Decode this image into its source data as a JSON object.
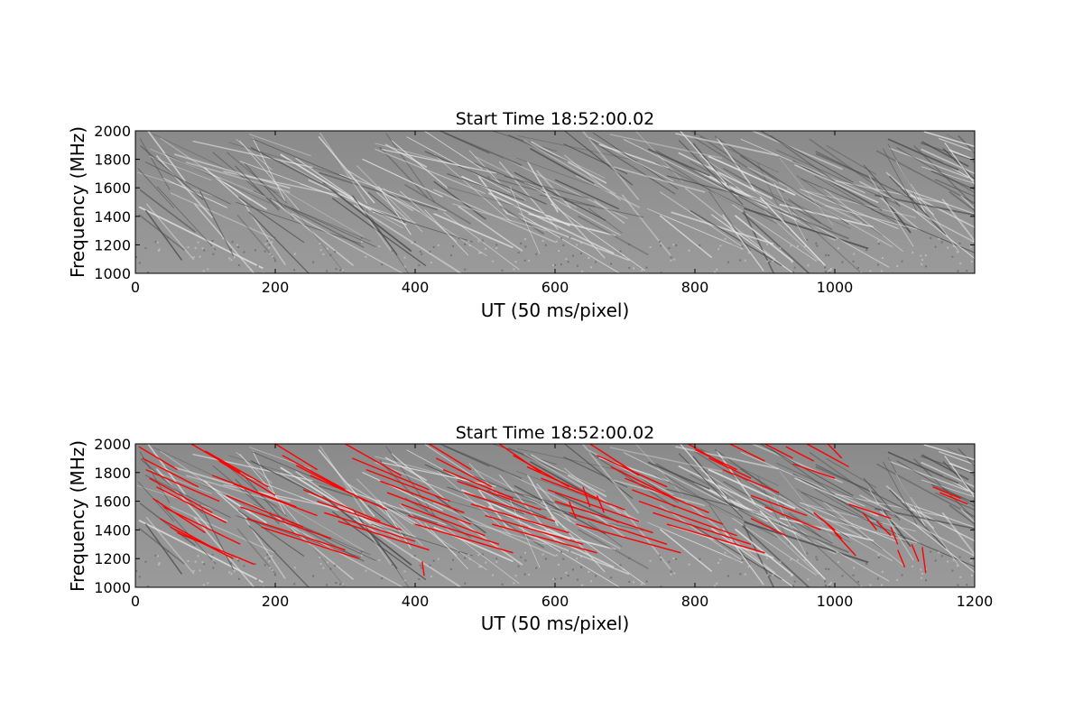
{
  "chart_data": [
    {
      "type": "heatmap",
      "title": "Start Time 18:52:00.02",
      "xlabel": "UT (50 ms/pixel)",
      "ylabel": "Frequency (MHz)",
      "xlim": [
        0,
        1200
      ],
      "ylim": [
        1000,
        2000
      ],
      "xticks": [
        0,
        200,
        400,
        600,
        800,
        1000
      ],
      "yticks": [
        1000,
        1200,
        1400,
        1600,
        1800,
        2000
      ],
      "colormap": "gray",
      "overlay": null
    },
    {
      "type": "heatmap",
      "title": "Start Time 18:52:00.02",
      "xlabel": "UT (50 ms/pixel)",
      "ylabel": "Frequency (MHz)",
      "xlim": [
        0,
        1200
      ],
      "ylim": [
        1000,
        2000
      ],
      "xticks": [
        0,
        200,
        400,
        600,
        800,
        1000,
        1200
      ],
      "yticks": [
        1000,
        1200,
        1400,
        1600,
        1800,
        2000
      ],
      "colormap": "gray",
      "overlay": {
        "color": "#ff0000",
        "description": "detected drifting burst segments",
        "segments": [
          [
            5,
            1980,
            60,
            1820
          ],
          [
            10,
            1900,
            90,
            1700
          ],
          [
            15,
            1820,
            120,
            1600
          ],
          [
            20,
            1760,
            110,
            1520
          ],
          [
            30,
            1700,
            130,
            1450
          ],
          [
            25,
            1620,
            100,
            1380
          ],
          [
            40,
            1560,
            150,
            1300
          ],
          [
            35,
            1480,
            120,
            1250
          ],
          [
            50,
            1420,
            140,
            1200
          ],
          [
            60,
            1380,
            170,
            1160
          ],
          [
            80,
            2000,
            150,
            1800
          ],
          [
            100,
            1950,
            190,
            1700
          ],
          [
            120,
            1880,
            200,
            1640
          ],
          [
            110,
            1780,
            230,
            1560
          ],
          [
            140,
            1720,
            260,
            1500
          ],
          [
            130,
            1640,
            240,
            1420
          ],
          [
            150,
            1560,
            280,
            1340
          ],
          [
            160,
            1480,
            300,
            1260
          ],
          [
            180,
            1420,
            320,
            1200
          ],
          [
            200,
            2000,
            260,
            1820
          ],
          [
            210,
            1920,
            300,
            1680
          ],
          [
            230,
            1850,
            330,
            1600
          ],
          [
            250,
            1780,
            360,
            1540
          ],
          [
            240,
            1680,
            350,
            1460
          ],
          [
            260,
            1600,
            380,
            1400
          ],
          [
            270,
            1520,
            400,
            1320
          ],
          [
            290,
            1460,
            420,
            1260
          ],
          [
            300,
            2000,
            380,
            1780
          ],
          [
            310,
            1900,
            420,
            1680
          ],
          [
            330,
            1820,
            450,
            1600
          ],
          [
            350,
            1740,
            470,
            1520
          ],
          [
            360,
            1660,
            480,
            1440
          ],
          [
            380,
            1580,
            500,
            1360
          ],
          [
            390,
            1500,
            520,
            1300
          ],
          [
            400,
            1440,
            540,
            1240
          ],
          [
            420,
            2000,
            480,
            1820
          ],
          [
            430,
            1900,
            510,
            1700
          ],
          [
            440,
            1820,
            540,
            1620
          ],
          [
            460,
            1740,
            580,
            1540
          ],
          [
            470,
            1660,
            600,
            1460
          ],
          [
            480,
            1580,
            620,
            1380
          ],
          [
            500,
            1500,
            640,
            1300
          ],
          [
            510,
            1440,
            660,
            1240
          ],
          [
            520,
            2000,
            580,
            1800
          ],
          [
            540,
            1920,
            620,
            1700
          ],
          [
            560,
            1840,
            660,
            1620
          ],
          [
            580,
            1760,
            700,
            1540
          ],
          [
            590,
            1680,
            720,
            1460
          ],
          [
            600,
            1600,
            740,
            1380
          ],
          [
            620,
            1520,
            760,
            1300
          ],
          [
            630,
            1440,
            780,
            1240
          ],
          [
            650,
            2000,
            720,
            1780
          ],
          [
            660,
            1920,
            760,
            1700
          ],
          [
            680,
            1840,
            780,
            1600
          ],
          [
            700,
            1760,
            820,
            1520
          ],
          [
            710,
            1680,
            840,
            1440
          ],
          [
            720,
            1600,
            860,
            1360
          ],
          [
            740,
            1520,
            880,
            1300
          ],
          [
            760,
            1440,
            900,
            1240
          ],
          [
            790,
            2000,
            840,
            1860
          ],
          [
            800,
            1960,
            860,
            1820
          ],
          [
            820,
            1900,
            880,
            1760
          ],
          [
            840,
            1820,
            920,
            1660
          ],
          [
            850,
            2000,
            900,
            1880
          ],
          [
            900,
            2000,
            940,
            1900
          ],
          [
            930,
            1980,
            970,
            1880
          ],
          [
            960,
            2000,
            1020,
            1840
          ],
          [
            990,
            2000,
            1010,
            1900
          ],
          [
            940,
            1860,
            1000,
            1760
          ],
          [
            880,
            1640,
            960,
            1500
          ],
          [
            900,
            1560,
            980,
            1400
          ],
          [
            880,
            1480,
            930,
            1360
          ],
          [
            970,
            1520,
            1000,
            1400
          ],
          [
            985,
            1460,
            1010,
            1340
          ],
          [
            1000,
            1380,
            1030,
            1220
          ],
          [
            1020,
            1580,
            1080,
            1480
          ],
          [
            1040,
            1520,
            1060,
            1400
          ],
          [
            1060,
            1460,
            1080,
            1360
          ],
          [
            1080,
            1420,
            1090,
            1300
          ],
          [
            1090,
            1260,
            1100,
            1140
          ],
          [
            1110,
            1300,
            1120,
            1180
          ],
          [
            1125,
            1280,
            1130,
            1100
          ],
          [
            1140,
            1700,
            1180,
            1620
          ],
          [
            1150,
            1660,
            1190,
            1580
          ],
          [
            410,
            1180,
            413,
            1080
          ],
          [
            620,
            1600,
            630,
            1480
          ],
          [
            640,
            1700,
            650,
            1560
          ],
          [
            660,
            1640,
            670,
            1520
          ]
        ]
      }
    }
  ]
}
